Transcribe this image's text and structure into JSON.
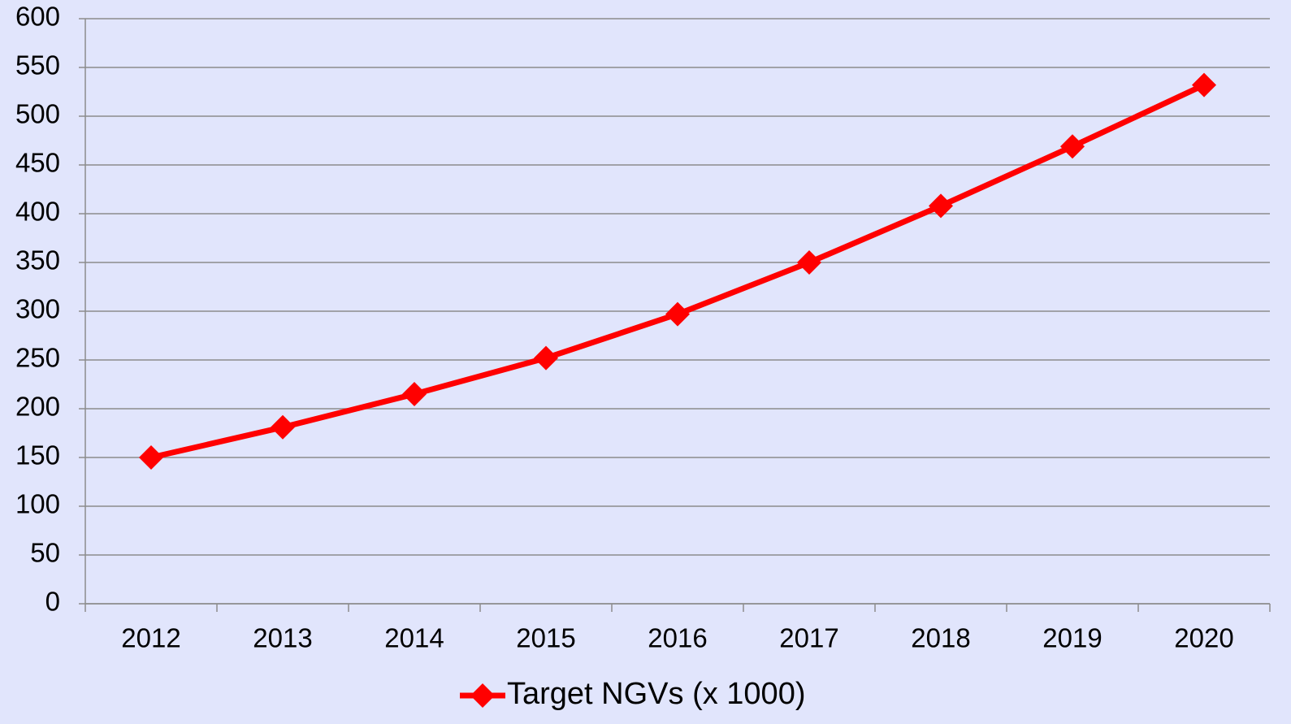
{
  "chart_data": {
    "type": "line",
    "categories": [
      "2012",
      "2013",
      "2014",
      "2015",
      "2016",
      "2017",
      "2018",
      "2019",
      "2020"
    ],
    "series": [
      {
        "name": "Target NGVs (x 1000)",
        "color": "#ff0000",
        "values": [
          150,
          181,
          215,
          252,
          297,
          350,
          408,
          469,
          532
        ]
      }
    ],
    "ylim": [
      0,
      600
    ],
    "yticks": [
      0,
      50,
      100,
      150,
      200,
      250,
      300,
      350,
      400,
      450,
      500,
      550,
      600
    ],
    "grid": true,
    "legend": "bottom"
  }
}
